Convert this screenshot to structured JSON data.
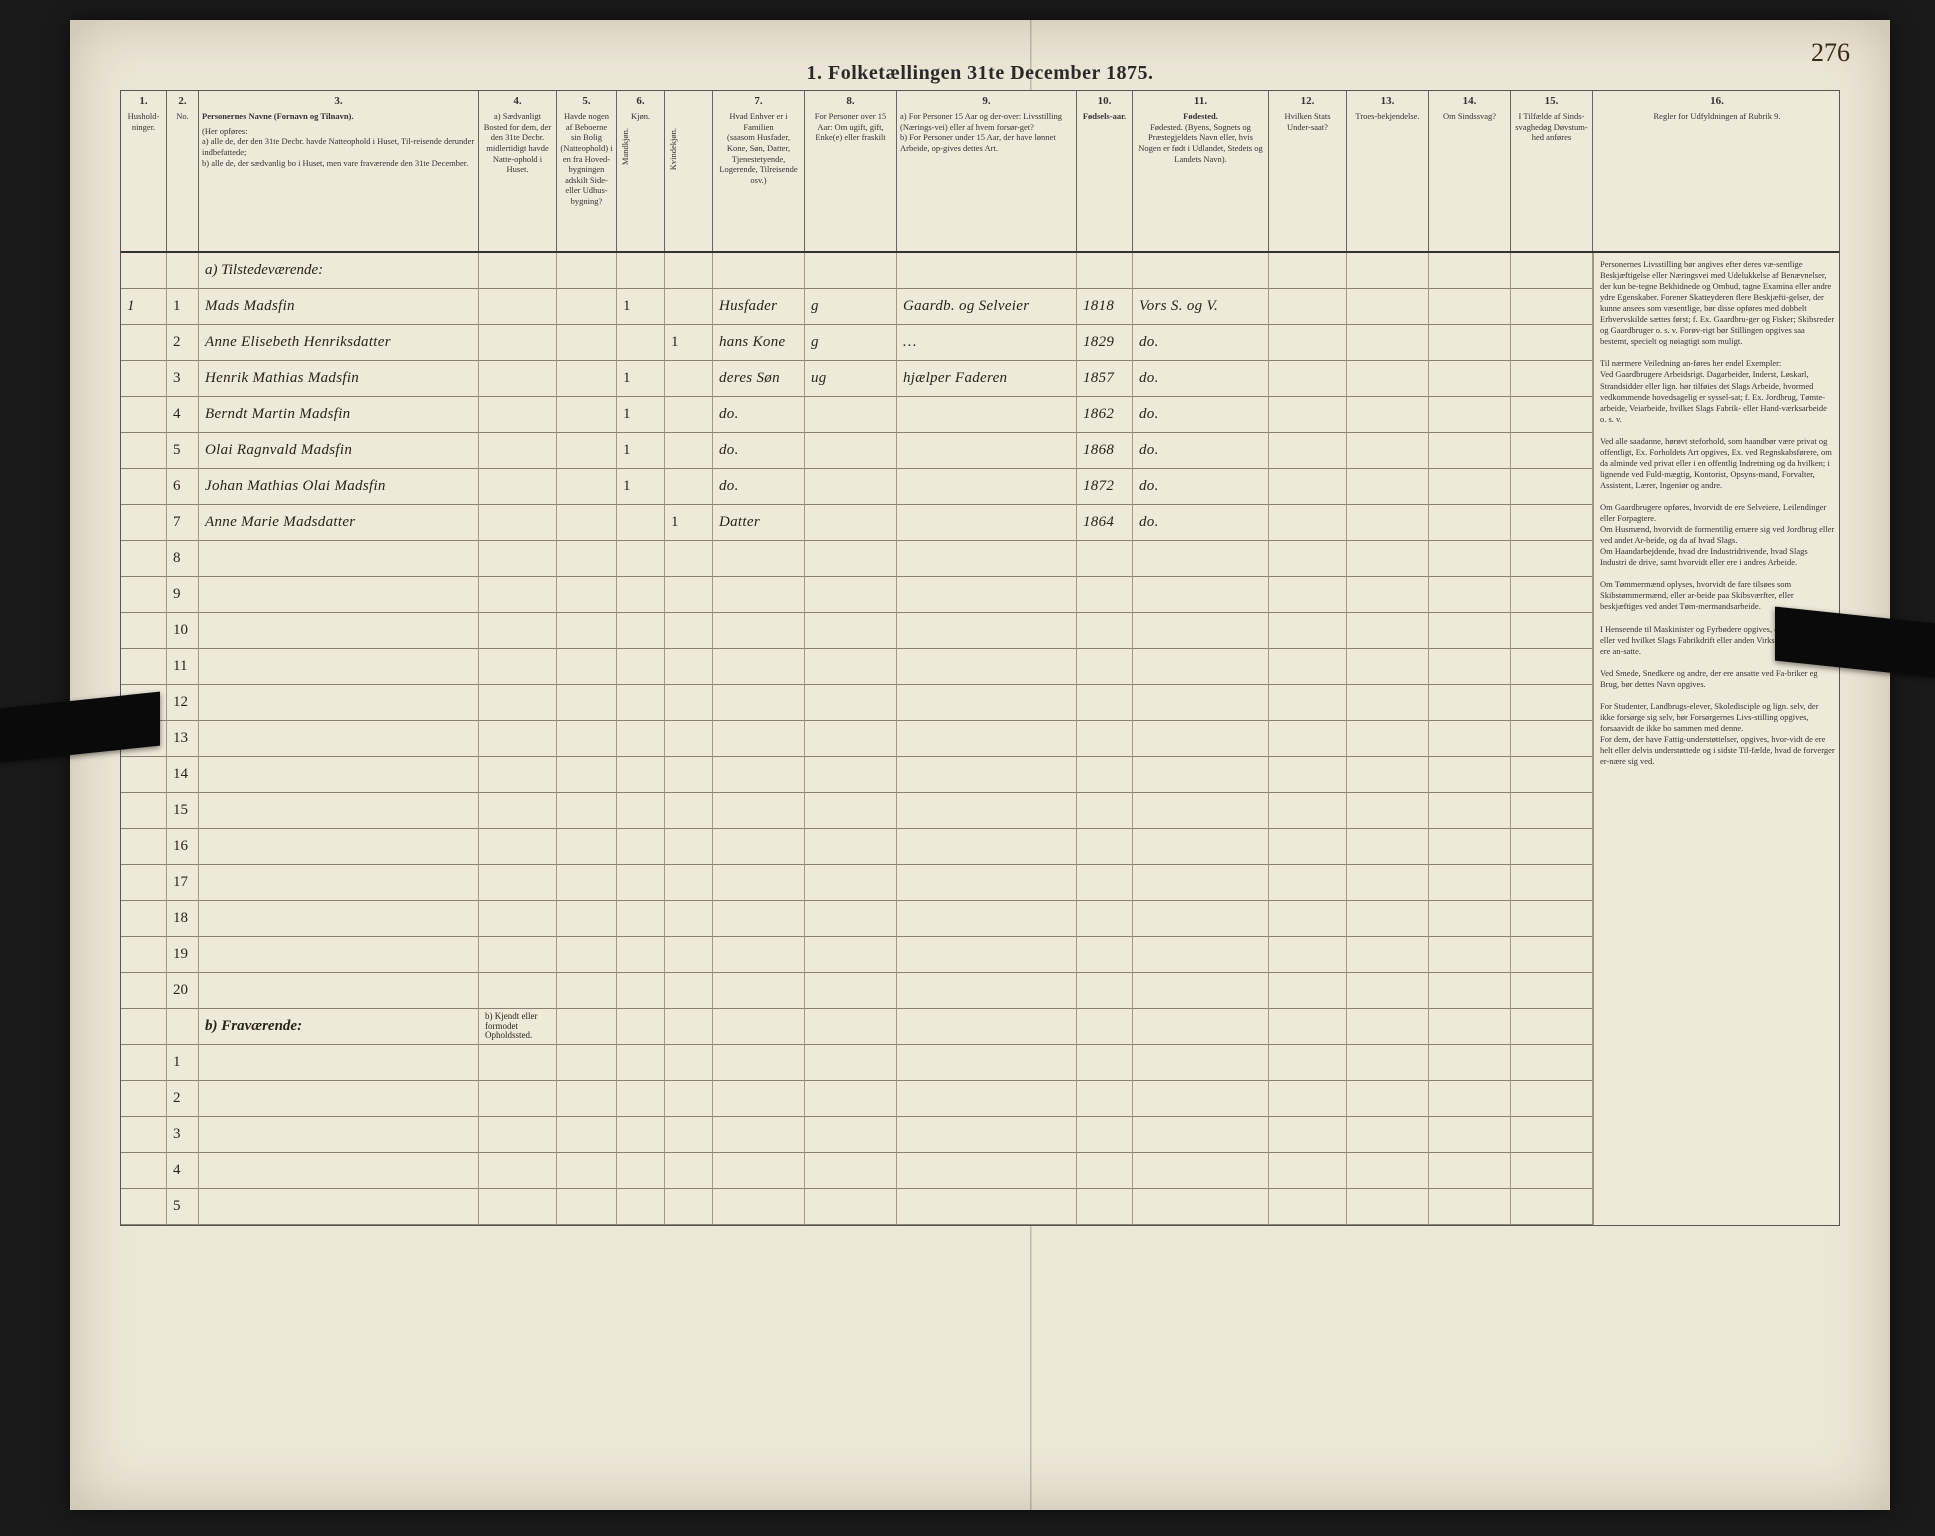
{
  "document": {
    "page_number": "276",
    "title": "1.  Folketællingen 31te December 1875.",
    "colors": {
      "paper": "#ede7d8",
      "ink": "#2a2418",
      "rule": "#8a8270",
      "border": "#555555",
      "background": "#1a1a1a"
    }
  },
  "columns": {
    "c1": {
      "num": "1.",
      "label": "Hushold-ninger."
    },
    "c2": {
      "num": "2.",
      "label": "No."
    },
    "c3": {
      "num": "3.",
      "label": "Personernes Navne (Fornavn og Tilnavn).",
      "sub": "(Her opføres:\na) alle de, der den 31te Decbr. havde Natteophold i Huset, Til-reisende derunder indbefattede;\nb) alle de, der sædvanlig bo i Huset, men vare fraværende den 31te December."
    },
    "c4": {
      "num": "4.",
      "label": "a) Sædvanligt Bosted for dem, der den 31te Decbr. midlertidigt havde Natte-ophold i Huset."
    },
    "c5": {
      "num": "5.",
      "label": "Havde nogen af Beboerne sin Bolig (Natteophold) i en fra Hoved-bygningen adskilt Side- eller Udhus-bygning?"
    },
    "c6": {
      "num": "6.",
      "label": "Kjøn.",
      "sub_a": "Mandkjøn.",
      "sub_b": "Kvindekjøn."
    },
    "c7": {
      "num": "7.",
      "label": "Hvad Enhver er i Familien\n(saasom Husfader, Kone, Søn, Datter, Tjenestetyende, Logerende, Tilreisende osv.)"
    },
    "c8": {
      "num": "8.",
      "label": "For Personer over 15 Aar: Om ugift, gift, Enke(e) eller fraskilt"
    },
    "c9": {
      "num": "9.",
      "label": "a) For Personer 15 Aar og der-over: Livsstilling (Nærings-vei) eller af hvem forsør-get?\nb) For Personer under 15 Aar, der have lønnet Arbeide, op-gives dettes Art."
    },
    "c10": {
      "num": "10.",
      "label": "Fødsels-aar."
    },
    "c11": {
      "num": "11.",
      "label": "Fødested.\n(Byens, Sognets og Præstegjeldets Navn eller, hvis Nogen er født i Udlandet, Stedets og Landets Navn)."
    },
    "c12": {
      "num": "12.",
      "label": "Hvilken Stats Under-saat?"
    },
    "c13": {
      "num": "13.",
      "label": "Troes-bekjendelse."
    },
    "c14": {
      "num": "14.",
      "label": "Om Sindssvag?"
    },
    "c15": {
      "num": "15.",
      "label": "I Tilfælde af Sinds-svaghedøg Døvstum-hed anføres"
    },
    "c16": {
      "num": "16.",
      "label": "Regler for Udfyldningen af Rubrik 9."
    }
  },
  "section_a": "a) Tilstedeværende:",
  "section_b": "b) Fraværende:",
  "section_b_note": "b) Kjendt eller formodet Opholdssted.",
  "entries": [
    {
      "hh": "1",
      "n": "1",
      "name": "Mads Madsfin",
      "m": "1",
      "k": "",
      "fam": "Husfader",
      "civ": "g",
      "occ": "Gaardb. og Selveier",
      "year": "1818",
      "place": "Vors S. og V."
    },
    {
      "hh": "",
      "n": "2",
      "name": "Anne Elisebeth Henriksdatter",
      "m": "",
      "k": "1",
      "fam": "hans Kone",
      "civ": "g",
      "occ": "…",
      "year": "1829",
      "place": "do."
    },
    {
      "hh": "",
      "n": "3",
      "name": "Henrik Mathias Madsfin",
      "m": "1",
      "k": "",
      "fam": "deres Søn",
      "civ": "ug",
      "occ": "hjælper Faderen",
      "year": "1857",
      "place": "do."
    },
    {
      "hh": "",
      "n": "4",
      "name": "Berndt Martin Madsfin",
      "m": "1",
      "k": "",
      "fam": "do.",
      "civ": "",
      "occ": "",
      "year": "1862",
      "place": "do."
    },
    {
      "hh": "",
      "n": "5",
      "name": "Olai Ragnvald Madsfin",
      "m": "1",
      "k": "",
      "fam": "do.",
      "civ": "",
      "occ": "",
      "year": "1868",
      "place": "do."
    },
    {
      "hh": "",
      "n": "6",
      "name": "Johan Mathias Olai Madsfin",
      "m": "1",
      "k": "",
      "fam": "do.",
      "civ": "",
      "occ": "",
      "year": "1872",
      "place": "do."
    },
    {
      "hh": "",
      "n": "7",
      "name": "Anne Marie Madsdatter",
      "m": "",
      "k": "1",
      "fam": "Datter",
      "civ": "",
      "occ": "",
      "year": "1864",
      "place": "do."
    }
  ],
  "blank_rows_a": [
    "8",
    "9",
    "10",
    "11",
    "12",
    "13",
    "14",
    "15",
    "16",
    "17",
    "18",
    "19",
    "20"
  ],
  "blank_rows_b": [
    "1",
    "2",
    "3",
    "4",
    "5"
  ],
  "instructions_text": "Personernes Livsstilling bør angives efter deres væ-sentlige Beskjæftigelse eller Næringsvei med Udelukkelse af Benævnelser, der kun be-tegne Bekhidnede og Ombud, tagne Examina eller andre ydre Egenskaber. Forener Skatteyderen flere Beskjæfti-gelser, der kunne ansees som væsentlige, bør disse opføres med dobbelt Erhvervskilde sættes først; f. Ex. Gaardbru-ger og Fisker; Skibsreder og Gaardbruger o. s. v. Forøv-rigt bør Stillingen opgives saa bestemt, specielt og nøiagtigt som muligt.\n\nTil nærmere Veiledning an-føres her endel Exempler:\nVed Gaardbrugere Arbeidsrigt. Dagarbeider, Inderst, Løskarl, Strandsidder eller lign. hør tilføies det Slags Arbeide, hvormed vedkommende hovedsagelig er syssel-sat; f. Ex. Jordbrug, Tømte-arbeide, Veiarbeide, hvilket Slags Fabrik- eller Hand-værksarbeide o. s. v.\n\nVed alle saadanne, hørøvt steforhold, som haandbør være privat og offentligt, Ex. Forholdets Art opgives, Ex. ved Regnskabsførere, om da alminde ved privat eller i en offentlig Indretning og da hvilken; i lignende ved Fuld-mægtig, Kontorist, Opsyns-mand, Forvalter, Assistent, Lærer, Ingeniør og andre.\n\nOm Gaardbrugere opføres, hvorvidt de ere Selveiere, Leilendinger eller Forpagtere.\nOm Husmænd, hvorvidt de formentilig ernære sig ved Jordbrug eller ved andet Ar-beide, og da af hvad Slags.\nOm Haandarbejdende, hvad dre Industridrivende, hvad Slags Industri de drive, samt hvorvidt eller ere i andres Arbeide.\n\nOm Tømmermænd oplyses, hvorvidt de fare tilsøes som Skibstømmermænd, eller ar-beide paa Skibsværfter, eller beskjæftiges ved andet Tøm-mermandsarbeide.\n\nI Henseende til Maskinister og Fyrbødere opgives, om de fare tilsøes eller ved hvilket Slags Fabrikdrift eller anden Virksomhedsgren de ere an-satte.\n\nVed Smede, Snedkere og andre, der ere ansatte ved Fa-briker eg Brug, bør dettes Navn opgives.\n\nFor Studenter, Landbrugs-elever, Skoledisciple og lign. selv, der ikke forsørge sig selv, bør Forsørgernes Livs-stilling opgives, forsaavidt de ikke bo sammen med denne.\nFor dem, der have Fattig-understøttelser, opgives, hvor-vidt de ere helt eller delvis understøttede og i sidste Til-fælde, hvad de forverger er-nære sig ved."
}
